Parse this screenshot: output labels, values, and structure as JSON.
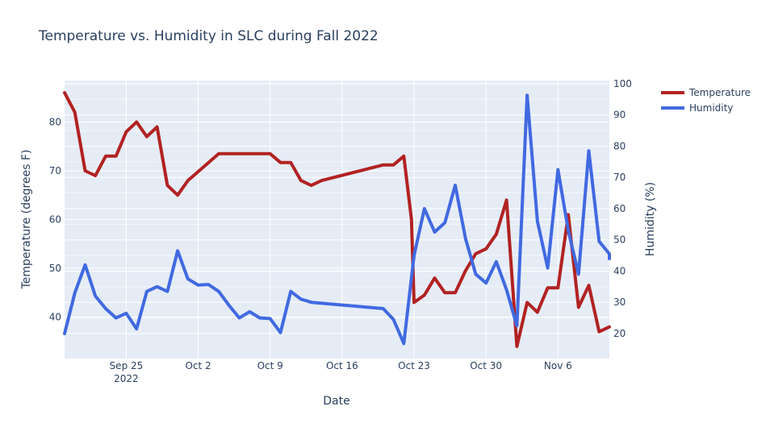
{
  "chart_data": {
    "type": "line",
    "title": "Temperature vs. Humidity in SLC during Fall 2022",
    "xlabel": "Date",
    "ylabel": "Temperature (degrees F)",
    "y2label": "Humidity (%)",
    "xlim": [
      "2022-09-19",
      "2022-11-11"
    ],
    "ylim": [
      31.5,
      88.5
    ],
    "y2lim": [
      12,
      101
    ],
    "grid": true,
    "legend_position": "top-right",
    "x_ticks": [
      "Sep 25",
      "Oct 2",
      "Oct 9",
      "Oct 16",
      "Oct 23",
      "Oct 30",
      "Nov 6"
    ],
    "x_tick_year": "2022",
    "y_ticks": [
      "40",
      "50",
      "60",
      "70",
      "80"
    ],
    "y2_ticks": [
      "20",
      "30",
      "40",
      "50",
      "60",
      "70",
      "80",
      "90",
      "100"
    ],
    "series": [
      {
        "name": "Temperature",
        "axis": "y",
        "color": "#b22222",
        "points": [
          [
            "2022-09-19",
            86
          ],
          [
            "2022-09-20",
            82
          ],
          [
            "2022-09-21",
            70
          ],
          [
            "2022-09-22",
            69
          ],
          [
            "2022-09-23",
            73
          ],
          [
            "2022-09-24",
            73
          ],
          [
            "2022-09-25",
            78
          ],
          [
            "2022-09-26",
            80
          ],
          [
            "2022-09-27",
            77
          ],
          [
            "2022-09-28",
            79
          ],
          [
            "2022-09-29",
            67
          ],
          [
            "2022-09-30",
            65
          ],
          [
            "2022-10-01",
            68
          ],
          [
            "2022-10-04",
            73.5
          ],
          [
            "2022-10-09",
            73.5
          ],
          [
            "2022-10-10",
            71.7
          ],
          [
            "2022-10-11",
            71.7
          ],
          [
            "2022-10-12",
            68
          ],
          [
            "2022-10-13",
            67
          ],
          [
            "2022-10-14",
            68
          ],
          [
            "2022-10-20",
            71.2
          ],
          [
            "2022-10-21",
            71.2
          ],
          [
            "2022-10-22",
            73
          ],
          [
            "2022-10-22T18:00",
            60
          ],
          [
            "2022-10-23",
            43
          ],
          [
            "2022-10-24",
            44.5
          ],
          [
            "2022-10-25",
            48
          ],
          [
            "2022-10-26",
            45
          ],
          [
            "2022-10-27",
            45
          ],
          [
            "2022-10-28",
            49.5
          ],
          [
            "2022-10-29",
            53
          ],
          [
            "2022-10-30",
            54
          ],
          [
            "2022-10-31",
            57
          ],
          [
            "2022-11-01",
            64
          ],
          [
            "2022-11-02",
            34
          ],
          [
            "2022-11-03",
            43
          ],
          [
            "2022-11-04",
            41
          ],
          [
            "2022-11-05",
            46
          ],
          [
            "2022-11-06",
            46
          ],
          [
            "2022-11-07",
            61
          ],
          [
            "2022-11-08",
            42
          ],
          [
            "2022-11-09",
            46.5
          ],
          [
            "2022-11-10",
            37
          ],
          [
            "2022-11-11",
            38
          ]
        ]
      },
      {
        "name": "Humidity",
        "axis": "y2",
        "color": "#4169e1",
        "points": [
          [
            "2022-09-19",
            20
          ],
          [
            "2022-09-20",
            33
          ],
          [
            "2022-09-21",
            42
          ],
          [
            "2022-09-22",
            32
          ],
          [
            "2022-09-23",
            28
          ],
          [
            "2022-09-24",
            25
          ],
          [
            "2022-09-25",
            26.5
          ],
          [
            "2022-09-26",
            21.5
          ],
          [
            "2022-09-27",
            33.5
          ],
          [
            "2022-09-28",
            35
          ],
          [
            "2022-09-29",
            33.5
          ],
          [
            "2022-09-30",
            46.5
          ],
          [
            "2022-10-01",
            37.5
          ],
          [
            "2022-10-02",
            35.5
          ],
          [
            "2022-10-03",
            35.7
          ],
          [
            "2022-10-04",
            33.5
          ],
          [
            "2022-10-05",
            29
          ],
          [
            "2022-10-06",
            25
          ],
          [
            "2022-10-07",
            27
          ],
          [
            "2022-10-08",
            25
          ],
          [
            "2022-10-09",
            24.8
          ],
          [
            "2022-10-10",
            20.3
          ],
          [
            "2022-10-11",
            33.5
          ],
          [
            "2022-10-12",
            31
          ],
          [
            "2022-10-13",
            30
          ],
          [
            "2022-10-20",
            28
          ],
          [
            "2022-10-21",
            24.5
          ],
          [
            "2022-10-22",
            16.8
          ],
          [
            "2022-10-23",
            45
          ],
          [
            "2022-10-24",
            60
          ],
          [
            "2022-10-25",
            52.5
          ],
          [
            "2022-10-26",
            55.5
          ],
          [
            "2022-10-27",
            67.5
          ],
          [
            "2022-10-28",
            50.5
          ],
          [
            "2022-10-29",
            39
          ],
          [
            "2022-10-30",
            36.2
          ],
          [
            "2022-10-31",
            43
          ],
          [
            "2022-11-01",
            34
          ],
          [
            "2022-11-02",
            22.5
          ],
          [
            "2022-11-03",
            96.3
          ],
          [
            "2022-11-04",
            56
          ],
          [
            "2022-11-05",
            41
          ],
          [
            "2022-11-06",
            72.5
          ],
          [
            "2022-11-07",
            53
          ],
          [
            "2022-11-08",
            39
          ],
          [
            "2022-11-09",
            78.5
          ],
          [
            "2022-11-10",
            49.5
          ],
          [
            "2022-11-11",
            45.5
          ],
          [
            "2022-11-11T12:00",
            44
          ]
        ]
      }
    ]
  }
}
